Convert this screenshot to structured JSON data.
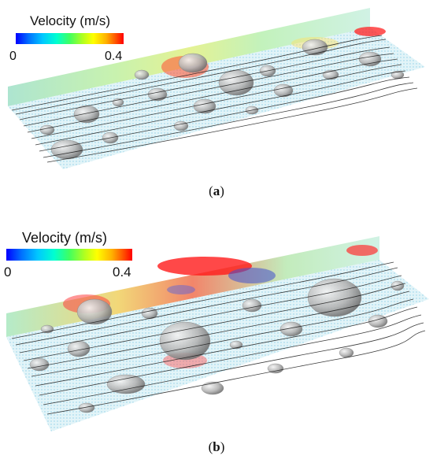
{
  "panels": [
    {
      "id": "a",
      "legend": {
        "title": "Velocity (m/s)",
        "min_label": "0",
        "max_label": "0.4"
      },
      "caption": {
        "open": "(",
        "label": "a",
        "close": ")"
      }
    },
    {
      "id": "b",
      "legend": {
        "title": "Velocity (m/s)",
        "min_label": "0",
        "max_label": "0.4"
      },
      "caption": {
        "open": "(",
        "label": "b",
        "close": ")"
      }
    }
  ],
  "colormap": [
    "#0000ff",
    "#0070ff",
    "#00c8ff",
    "#00ffd0",
    "#40ff60",
    "#b0ff20",
    "#ffff00",
    "#ffb000",
    "#ff5000",
    "#ff0000"
  ]
}
